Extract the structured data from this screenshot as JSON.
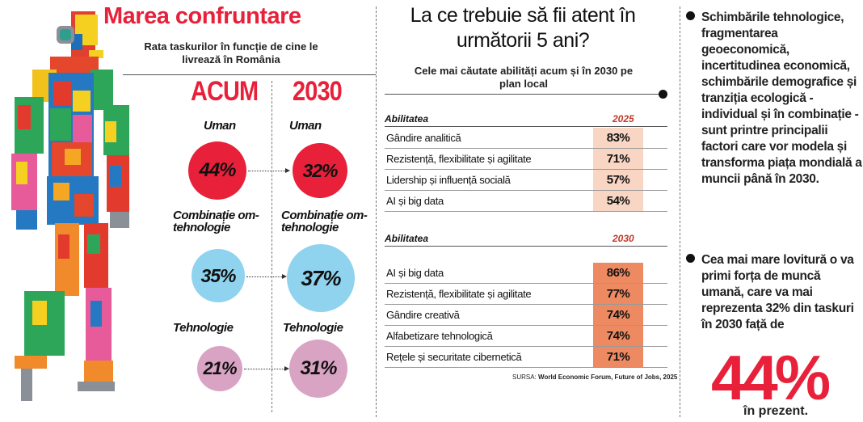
{
  "left": {
    "title": "Marea confruntare",
    "subtitle": "Rata taskurilor în funcție de cine le livrează în România",
    "col_now": "ACUM",
    "col_future": "2030",
    "categories": [
      {
        "label": "Uman",
        "now": "44%",
        "future": "32%"
      },
      {
        "label": "Combinație om-tehnologie",
        "now": "35%",
        "future": "37%"
      },
      {
        "label": "Tehnologie",
        "now": "21%",
        "future": "31%"
      }
    ],
    "colors": {
      "uman": "#e8203a",
      "combinatie": "#8fd3ef",
      "tehnologie": "#d9a3c4"
    }
  },
  "middle": {
    "title": "La ce trebuie să fii atent în următorii 5 ani?",
    "subtitle": "Cele mai căutate abilități acum și în 2030 pe plan local",
    "source_prefix": "SURSA:",
    "source": "World Economic Forum, Future of Jobs, 2025"
  },
  "chart_data": [
    {
      "type": "table",
      "column_header": "Abilitatea",
      "value_header": "2025",
      "rows": [
        {
          "label": "Gândire analitică",
          "value": "83%"
        },
        {
          "label": "Rezistență, flexibilitate și agilitate",
          "value": "71%"
        },
        {
          "label": "Lidership și influență socială",
          "value": "57%"
        },
        {
          "label": "AI și big data",
          "value": "54%"
        }
      ],
      "value_color": "#f9d6c3"
    },
    {
      "type": "table",
      "column_header": "Abilitatea",
      "value_header": "2030",
      "rows": [
        {
          "label": "AI și big data",
          "value": "86%"
        },
        {
          "label": "Rezistență, flexibilitate și agilitate",
          "value": "77%"
        },
        {
          "label": "Gândire creativă",
          "value": "74%"
        },
        {
          "label": "Alfabetizare tehnologică",
          "value": "74%"
        },
        {
          "label": "Rețele și securitate cibernetică",
          "value": "71%"
        }
      ],
      "value_color": "#ee8a62"
    },
    {
      "type": "bubble",
      "series": [
        {
          "name": "ACUM",
          "categories": [
            "Uman",
            "Combinație om-tehnologie",
            "Tehnologie"
          ],
          "values": [
            44,
            35,
            21
          ]
        },
        {
          "name": "2030",
          "categories": [
            "Uman",
            "Combinație om-tehnologie",
            "Tehnologie"
          ],
          "values": [
            32,
            37,
            31
          ]
        }
      ]
    }
  ],
  "right": {
    "para1": "Schimbările tehnologice, fragmentarea geoeconomică, incertitudinea economică, schimbările demografice și tranziția ecologică - individual și în combinație - sunt printre principalii factori care vor modela și transforma piața mondială a muncii până în 2030.",
    "para2": "Cea mai mare lovitură o va primi forța de muncă umană, care va mai reprezenta 32% din taskuri în 2030 față de",
    "big_number": "44%",
    "big_suffix": "în prezent."
  }
}
